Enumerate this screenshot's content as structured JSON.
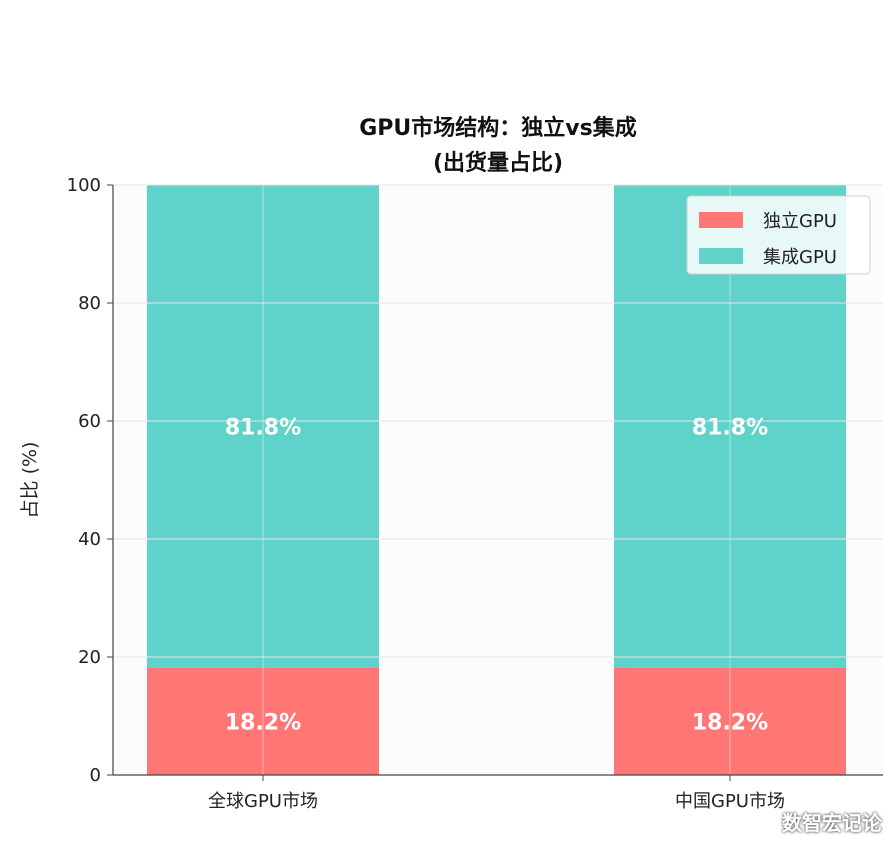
{
  "chart_data": {
    "type": "bar",
    "stacked": true,
    "title": [
      "GPU市场结构：独立vs集成",
      "(出货量占比)"
    ],
    "ylabel": "占比 (%)",
    "ylim": [
      0,
      100
    ],
    "yticks": [
      0,
      20,
      40,
      60,
      80,
      100
    ],
    "categories": [
      "全球GPU市场",
      "中国GPU市场"
    ],
    "series": [
      {
        "name": "独立GPU",
        "values": [
          18.2,
          18.2
        ],
        "labels": [
          "18.2%",
          "18.2%"
        ],
        "color": "#ff7675"
      },
      {
        "name": "集成GPU",
        "values": [
          81.8,
          81.8
        ],
        "labels": [
          "81.8%",
          "81.8%"
        ],
        "color": "#5fd3c9"
      }
    ],
    "grid": true,
    "legend": "top-right"
  },
  "watermark": "数智宏记论"
}
